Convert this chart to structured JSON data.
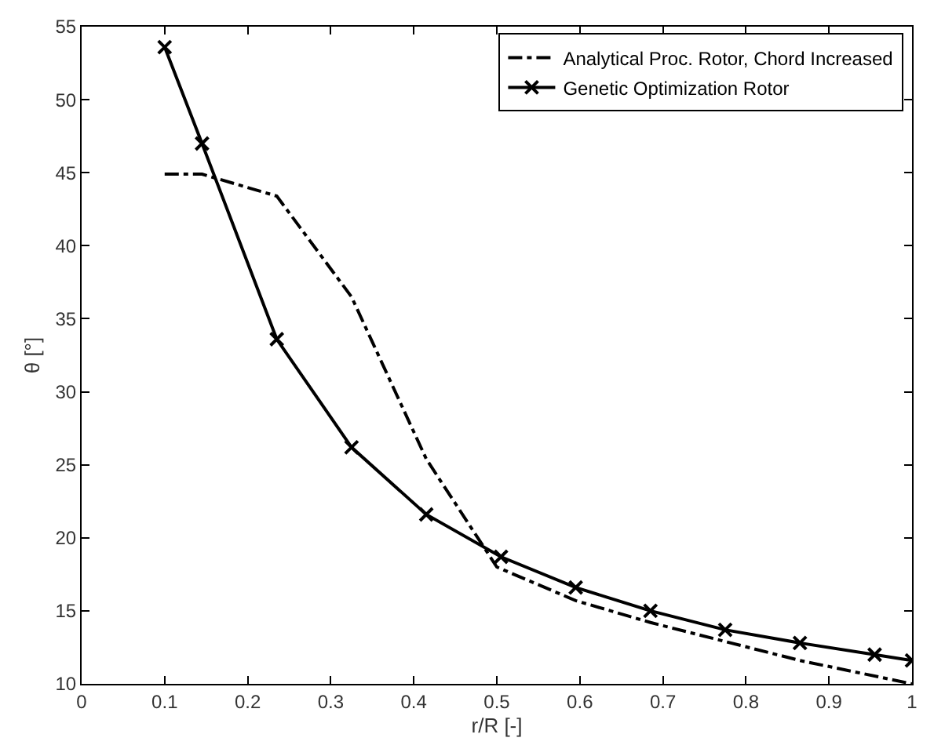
{
  "chart_data": {
    "type": "line",
    "xlabel": "r/R [-]",
    "ylabel": "θ [°]",
    "xlim": [
      0,
      1
    ],
    "xticks": [
      0,
      0.1,
      0.2,
      0.3,
      0.4,
      0.5,
      0.6,
      0.7,
      0.8,
      0.9,
      1
    ],
    "ylim": [
      10,
      55
    ],
    "yticks": [
      10,
      15,
      20,
      25,
      30,
      35,
      40,
      45,
      50,
      55
    ],
    "legend": "top right",
    "series": [
      {
        "name": "Analytical Proc. Rotor, Chord Increased",
        "color": "#000000",
        "line_style": "dashdot",
        "marker": "none",
        "x": [
          0.1,
          0.145,
          0.235,
          0.325,
          0.415,
          0.5,
          0.595,
          0.685,
          0.775,
          0.865,
          1.0
        ],
        "values": [
          44.9,
          44.9,
          43.4,
          36.5,
          25.4,
          18.0,
          15.7,
          14.2,
          12.9,
          11.6,
          10.0
        ]
      },
      {
        "name": "Genetic Optimization Rotor",
        "color": "#000000",
        "line_style": "solid",
        "marker": "cross",
        "x": [
          0.1,
          0.145,
          0.235,
          0.325,
          0.415,
          0.505,
          0.595,
          0.685,
          0.775,
          0.865,
          0.955,
          1.0
        ],
        "values": [
          53.6,
          47.0,
          33.6,
          26.2,
          21.6,
          18.7,
          16.6,
          15.0,
          13.7,
          12.8,
          12.0,
          11.6
        ]
      }
    ]
  }
}
